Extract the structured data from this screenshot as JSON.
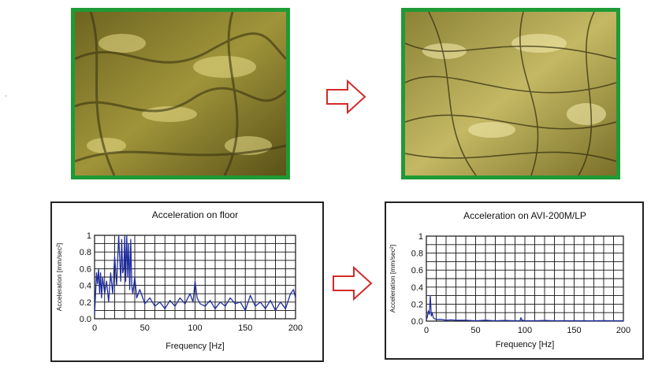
{
  "chart_data": [
    {
      "type": "line",
      "title": "Acceleration on floor",
      "xlabel": "Frequency [Hz]",
      "ylabel": "Acceleration [mm/sec²]",
      "xlim": [
        0,
        200
      ],
      "ylim": [
        0,
        1
      ],
      "x_ticks": [
        0,
        50,
        100,
        150,
        200
      ],
      "y_ticks": [
        0.0,
        0.2,
        0.4,
        0.6,
        0.8,
        1
      ],
      "y_tick_labels": [
        "0.0",
        "0.2",
        "0.4",
        "0.6",
        "0.8",
        "1"
      ],
      "grid": true,
      "color": "#1f2d9e",
      "x": [
        0,
        2,
        3,
        4,
        5,
        6,
        7,
        8,
        10,
        12,
        14,
        16,
        18,
        20,
        22,
        24,
        26,
        27,
        28,
        29,
        30,
        31,
        32,
        33,
        34,
        35,
        36,
        37,
        38,
        40,
        42,
        45,
        50,
        55,
        60,
        65,
        70,
        75,
        80,
        85,
        90,
        95,
        98,
        100,
        102,
        105,
        110,
        115,
        120,
        125,
        130,
        135,
        140,
        145,
        150,
        155,
        160,
        165,
        170,
        175,
        180,
        185,
        190,
        195,
        198,
        200
      ],
      "values": [
        0.05,
        0.55,
        0.42,
        0.6,
        0.3,
        0.55,
        0.25,
        0.5,
        0.3,
        0.45,
        0.2,
        0.55,
        0.3,
        0.75,
        0.4,
        1.0,
        0.45,
        0.95,
        0.55,
        0.6,
        0.98,
        0.45,
        1.0,
        0.5,
        0.9,
        0.35,
        0.95,
        0.4,
        0.3,
        0.5,
        0.25,
        0.35,
        0.18,
        0.25,
        0.15,
        0.2,
        0.12,
        0.22,
        0.15,
        0.25,
        0.18,
        0.3,
        0.2,
        0.45,
        0.25,
        0.18,
        0.15,
        0.22,
        0.12,
        0.2,
        0.15,
        0.25,
        0.18,
        0.2,
        0.1,
        0.28,
        0.15,
        0.2,
        0.12,
        0.22,
        0.1,
        0.2,
        0.12,
        0.3,
        0.35,
        0.25
      ]
    },
    {
      "type": "line",
      "title": "Acceleration on AVI-200M/LP",
      "xlabel": "Frequency [Hz]",
      "ylabel": "Acceleration [mm/sec²]",
      "xlim": [
        0,
        200
      ],
      "ylim": [
        0,
        1
      ],
      "x_ticks": [
        0,
        50,
        100,
        150,
        200
      ],
      "y_ticks": [
        0.0,
        0.2,
        0.4,
        0.6,
        0.8,
        1
      ],
      "y_tick_labels": [
        "0.0",
        "0.2",
        "0.4",
        "0.6",
        "0.8",
        "1"
      ],
      "grid": true,
      "color": "#1f2d9e",
      "x": [
        0,
        1,
        2,
        3,
        4,
        5,
        6,
        7,
        8,
        10,
        15,
        20,
        25,
        30,
        40,
        50,
        60,
        70,
        80,
        90,
        95,
        96,
        97,
        100,
        110,
        120,
        130,
        140,
        150,
        160,
        170,
        180,
        190,
        200
      ],
      "values": [
        0.02,
        0.05,
        0.12,
        0.08,
        0.3,
        0.06,
        0.1,
        0.04,
        0.03,
        0.02,
        0.02,
        0.01,
        0.015,
        0.01,
        0.01,
        0.005,
        0.01,
        0.005,
        0.008,
        0.005,
        0.005,
        0.04,
        0.01,
        0.005,
        0.005,
        0.008,
        0.005,
        0.005,
        0.005,
        0.005,
        0.004,
        0.006,
        0.004,
        0.005
      ]
    }
  ]
}
